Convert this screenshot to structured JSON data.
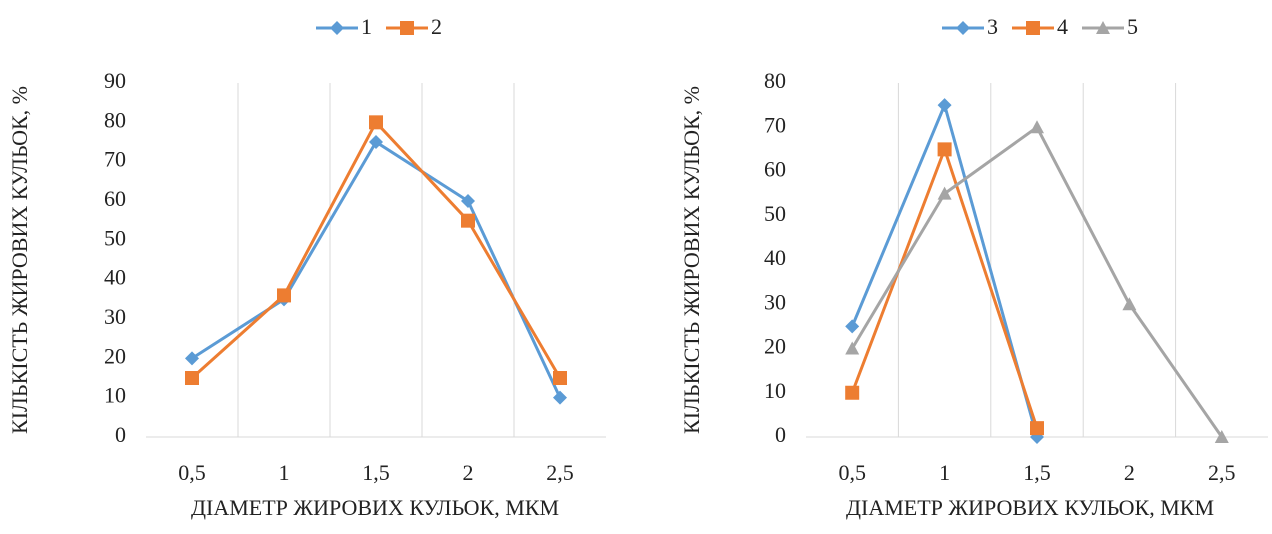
{
  "chart_data": [
    {
      "type": "line",
      "x_label": "ДІАМЕТР ЖИРОВИХ КУЛЬОК, МКМ",
      "y_label": "КІЛЬКІСТЬ ЖИРОВИХ КУЛЬОК, %",
      "categories": [
        "0,5",
        "1",
        "1,5",
        "2",
        "2,5"
      ],
      "series": [
        {
          "name": "1",
          "color": "#5b9bd5",
          "marker": "diamond",
          "values": [
            20,
            35,
            75,
            60,
            10
          ]
        },
        {
          "name": "2",
          "color": "#ed7d31",
          "marker": "square",
          "values": [
            15,
            36,
            80,
            55,
            15
          ]
        }
      ],
      "ylim": [
        0,
        90
      ],
      "yticks": [
        0,
        10,
        20,
        30,
        40,
        50,
        60,
        70,
        80,
        90
      ],
      "legend": "top"
    },
    {
      "type": "line",
      "x_label": "ДІАМЕТР ЖИРОВИХ КУЛЬОК, МКМ",
      "y_label": "КІЛЬКІСТЬ ЖИРОВИХ КУЛЬОК, %",
      "categories": [
        "0,5",
        "1",
        "1,5",
        "2",
        "2,5"
      ],
      "series": [
        {
          "name": "3",
          "color": "#5b9bd5",
          "marker": "diamond",
          "values": [
            25,
            75,
            0,
            null,
            null
          ]
        },
        {
          "name": "4",
          "color": "#ed7d31",
          "marker": "square",
          "values": [
            10,
            65,
            2,
            null,
            null
          ]
        },
        {
          "name": "5",
          "color": "#a5a5a5",
          "marker": "triangle",
          "values": [
            20,
            55,
            70,
            30,
            0
          ]
        }
      ],
      "ylim": [
        0,
        80
      ],
      "yticks": [
        0,
        10,
        20,
        30,
        40,
        50,
        60,
        70,
        80
      ],
      "legend": "top"
    }
  ]
}
